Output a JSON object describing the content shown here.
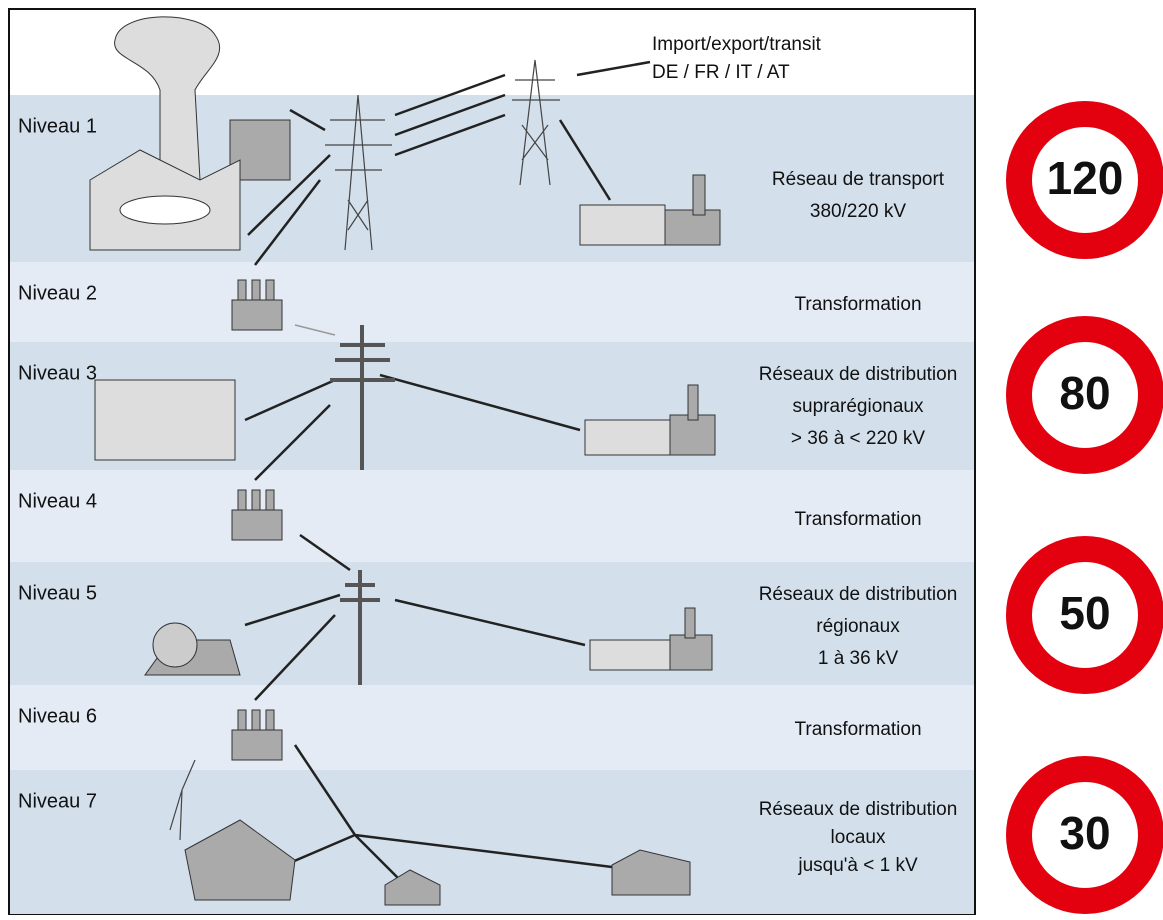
{
  "header": {
    "import_text": [
      "Import/export/transit",
      "DE / FR / IT / AT"
    ]
  },
  "levels": [
    {
      "label": "Niveau 1",
      "description": [
        "Réseau de transport",
        "380/220 kV"
      ]
    },
    {
      "label": "Niveau 2",
      "description": [
        "Transformation"
      ]
    },
    {
      "label": "Niveau 3",
      "description": [
        "Réseaux de distribution",
        "suprarégionaux",
        "> 36 à < 220 kV"
      ]
    },
    {
      "label": "Niveau 4",
      "description": [
        "Transformation"
      ]
    },
    {
      "label": "Niveau 5",
      "description": [
        "Réseaux de distribution",
        "régionaux",
        "1 à 36 kV"
      ]
    },
    {
      "label": "Niveau 6",
      "description": [
        "Transformation"
      ]
    },
    {
      "label": "Niveau 7",
      "description": [
        "Réseaux de distribution",
        "locaux",
        "jusqu'à < 1 kV"
      ]
    }
  ],
  "signs": [
    "120",
    "80",
    "50",
    "30"
  ]
}
